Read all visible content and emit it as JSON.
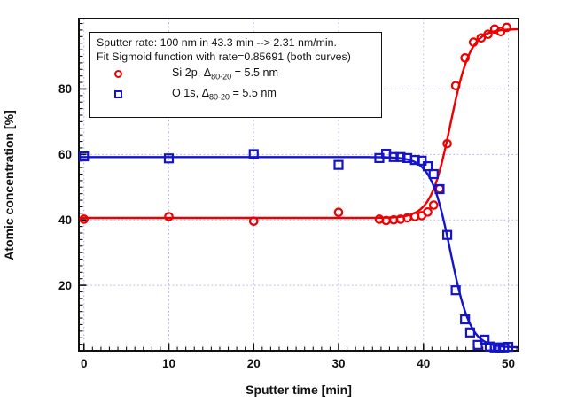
{
  "chart_data": {
    "type": "scatter",
    "annotation_box": {
      "line1": "Sputter rate: 100 nm in 43.3 min --> 2.31 nm/min.",
      "line2": "Fit Sigmoid function with rate=0.85691 (both curves)"
    },
    "xlabel": "Sputter time [min]",
    "ylabel": "Atomic concentration [%]",
    "xlim": [
      -0.6,
      51.2
    ],
    "ylim": [
      0,
      101.5
    ],
    "x_major_ticks": [
      0,
      10,
      20,
      30,
      40,
      50
    ],
    "x_minor_step": 1,
    "y_major_ticks": [
      20,
      40,
      60,
      80
    ],
    "y_minor_step": 2,
    "grid": "dotted-major",
    "grid_color": "#b2b2ea",
    "frame_color": "#111111",
    "legend_position": "top-left-box",
    "series": [
      {
        "name": "Si 2p",
        "legend_prefix": "Si 2p, Δ",
        "legend_sub": "80-20",
        "legend_suffix": " = 5.5 nm",
        "marker": "circle",
        "color": "#ee0000",
        "points": [
          [
            0,
            40.2
          ],
          [
            10,
            41.0
          ],
          [
            20,
            39.6
          ],
          [
            30,
            42.3
          ],
          [
            34.8,
            40.2
          ],
          [
            35.6,
            39.8
          ],
          [
            36.5,
            40.0
          ],
          [
            37.3,
            40.2
          ],
          [
            38.1,
            40.6
          ],
          [
            39.0,
            41.0
          ],
          [
            39.8,
            41.3
          ],
          [
            40.5,
            42.4
          ],
          [
            41.2,
            44.5
          ],
          [
            41.9,
            49.5
          ],
          [
            42.8,
            63.3
          ],
          [
            43.8,
            81.0
          ],
          [
            44.9,
            89.5
          ],
          [
            45.9,
            94.3
          ],
          [
            46.8,
            95.6
          ],
          [
            47.6,
            96.7
          ],
          [
            48.4,
            98.3
          ],
          [
            49.1,
            97.5
          ],
          [
            49.8,
            98.8
          ]
        ],
        "fit": {
          "type": "sigmoid",
          "base": 40.6,
          "amplitude": 57.7,
          "rate": 0.85691,
          "midpoint": 43.2
        }
      },
      {
        "name": "O 1s",
        "legend_prefix": "O 1s, Δ",
        "legend_sub": "80-20",
        "legend_suffix": " = 5.5 nm",
        "marker": "square",
        "color": "#1414cc",
        "points": [
          [
            0,
            59.4
          ],
          [
            10,
            58.8
          ],
          [
            20,
            60.1
          ],
          [
            30,
            56.8
          ],
          [
            34.8,
            58.9
          ],
          [
            35.6,
            60.2
          ],
          [
            36.5,
            59.2
          ],
          [
            37.3,
            59.2
          ],
          [
            38.1,
            58.9
          ],
          [
            39.0,
            58.3
          ],
          [
            39.8,
            58.1
          ],
          [
            40.5,
            56.4
          ],
          [
            41.2,
            54.0
          ],
          [
            41.9,
            49.4
          ],
          [
            42.8,
            35.4
          ],
          [
            43.8,
            18.5
          ],
          [
            44.9,
            9.6
          ],
          [
            45.5,
            5.6
          ],
          [
            46.4,
            1.8
          ],
          [
            47.2,
            3.4
          ],
          [
            47.8,
            1.3
          ],
          [
            48.4,
            1.0
          ],
          [
            49.0,
            1.0
          ],
          [
            49.5,
            1.0
          ],
          [
            50.0,
            1.2
          ]
        ],
        "fit": {
          "type": "sigmoid",
          "base": 59.2,
          "amplitude": -58.2,
          "rate": 0.85691,
          "midpoint": 43.2
        }
      }
    ]
  }
}
